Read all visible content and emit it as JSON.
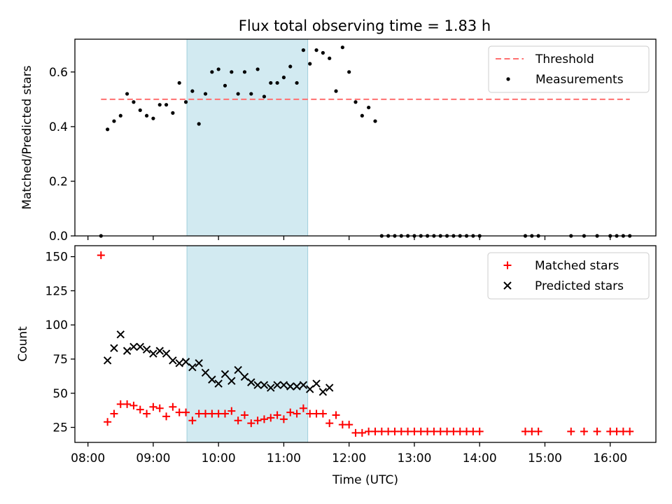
{
  "figure_title": "Flux total observing time = 1.83 h",
  "chart_data": [
    {
      "type": "scatter",
      "title": "Flux total observing time = 1.83 h",
      "xlabel": "",
      "ylabel": "Matched/Predicted stars",
      "xlim": [
        "07:48",
        "16:42"
      ],
      "ylim": [
        0,
        0.72
      ],
      "y_ticks": [
        0.0,
        0.2,
        0.4,
        0.6
      ],
      "x_ticks": [
        "08:00",
        "09:00",
        "10:00",
        "11:00",
        "12:00",
        "13:00",
        "14:00",
        "15:00",
        "16:00"
      ],
      "shaded_region": {
        "start": "09:31",
        "end": "11:22",
        "color": "#add8e6"
      },
      "legend_position": "upper right",
      "legend_entries": [
        "Threshold",
        "Measurements"
      ],
      "threshold": {
        "name": "Threshold",
        "value": 0.5,
        "x_range": [
          "08:12",
          "16:18"
        ],
        "color": "#ff7070",
        "style": "dashed"
      },
      "series": [
        {
          "name": "Measurements",
          "color": "#000000",
          "marker": "dot",
          "x": [
            "08:12",
            "08:18",
            "08:24",
            "08:30",
            "08:36",
            "08:42",
            "08:48",
            "08:54",
            "09:00",
            "09:06",
            "09:12",
            "09:18",
            "09:24",
            "09:30",
            "09:36",
            "09:42",
            "09:48",
            "09:54",
            "10:00",
            "10:06",
            "10:12",
            "10:18",
            "10:24",
            "10:30",
            "10:36",
            "10:42",
            "10:48",
            "10:54",
            "11:00",
            "11:06",
            "11:12",
            "11:18",
            "11:24",
            "11:30",
            "11:36",
            "11:42",
            "11:48",
            "11:54",
            "12:00",
            "12:06",
            "12:12",
            "12:18",
            "12:24",
            "12:30",
            "12:36",
            "12:42",
            "12:48",
            "12:54",
            "13:00",
            "13:06",
            "13:12",
            "13:18",
            "13:24",
            "13:30",
            "13:36",
            "13:42",
            "13:48",
            "13:54",
            "14:00",
            "14:42",
            "14:48",
            "14:54",
            "15:24",
            "15:36",
            "15:48",
            "16:00",
            "16:06",
            "16:12",
            "16:18"
          ],
          "y": [
            0.0,
            0.39,
            0.42,
            0.44,
            0.52,
            0.49,
            0.46,
            0.44,
            0.43,
            0.48,
            0.48,
            0.45,
            0.56,
            0.49,
            0.53,
            0.41,
            0.52,
            0.6,
            0.61,
            0.55,
            0.6,
            0.52,
            0.6,
            0.52,
            0.61,
            0.51,
            0.56,
            0.56,
            0.58,
            0.62,
            0.56,
            0.68,
            0.63,
            0.68,
            0.67,
            0.65,
            0.53,
            0.69,
            0.6,
            0.49,
            0.44,
            0.47,
            0.42,
            0,
            0,
            0,
            0,
            0,
            0,
            0,
            0,
            0,
            0,
            0,
            0,
            0,
            0,
            0,
            0,
            0,
            0,
            0,
            0,
            0,
            0,
            0,
            0,
            0,
            0
          ]
        }
      ]
    },
    {
      "type": "scatter",
      "xlabel": "Time (UTC)",
      "ylabel": "Count",
      "xlim": [
        "07:48",
        "16:42"
      ],
      "ylim": [
        14,
        158
      ],
      "y_ticks": [
        25,
        50,
        75,
        100,
        125,
        150
      ],
      "x_ticks": [
        "08:00",
        "09:00",
        "10:00",
        "11:00",
        "12:00",
        "13:00",
        "14:00",
        "15:00",
        "16:00"
      ],
      "shaded_region": {
        "start": "09:31",
        "end": "11:22",
        "color": "#add8e6"
      },
      "legend_position": "upper right",
      "legend_entries": [
        "Matched stars",
        "Predicted stars"
      ],
      "series": [
        {
          "name": "Matched stars",
          "color": "#ff0000",
          "marker": "plus",
          "x": [
            "08:12",
            "08:18",
            "08:24",
            "08:30",
            "08:36",
            "08:42",
            "08:48",
            "08:54",
            "09:00",
            "09:06",
            "09:12",
            "09:18",
            "09:24",
            "09:30",
            "09:36",
            "09:42",
            "09:48",
            "09:54",
            "10:00",
            "10:06",
            "10:12",
            "10:18",
            "10:24",
            "10:30",
            "10:36",
            "10:42",
            "10:48",
            "10:54",
            "11:00",
            "11:06",
            "11:12",
            "11:18",
            "11:24",
            "11:30",
            "11:36",
            "11:42",
            "11:48",
            "11:54",
            "12:00",
            "12:06",
            "12:12",
            "12:18",
            "12:24",
            "12:30",
            "12:36",
            "12:42",
            "12:48",
            "12:54",
            "13:00",
            "13:06",
            "13:12",
            "13:18",
            "13:24",
            "13:30",
            "13:36",
            "13:42",
            "13:48",
            "13:54",
            "14:00",
            "14:42",
            "14:48",
            "14:54",
            "15:24",
            "15:36",
            "15:48",
            "16:00",
            "16:06",
            "16:12",
            "16:18"
          ],
          "y": [
            151,
            29,
            35,
            42,
            42,
            41,
            38,
            35,
            40,
            39,
            33,
            40,
            36,
            36,
            30,
            35,
            35,
            35,
            35,
            35,
            37,
            30,
            34,
            28,
            30,
            31,
            32,
            34,
            31,
            36,
            35,
            39,
            35,
            35,
            35,
            28,
            34,
            27,
            27,
            21,
            21,
            22,
            22,
            22,
            22,
            22,
            22,
            22,
            22,
            22,
            22,
            22,
            22,
            22,
            22,
            22,
            22,
            22,
            22,
            22,
            22,
            22,
            22,
            22,
            22,
            22,
            22,
            22,
            22
          ]
        },
        {
          "name": "Predicted stars",
          "color": "#000000",
          "marker": "x",
          "x": [
            "08:18",
            "08:24",
            "08:30",
            "08:36",
            "08:42",
            "08:48",
            "08:54",
            "09:00",
            "09:06",
            "09:12",
            "09:18",
            "09:24",
            "09:30",
            "09:36",
            "09:42",
            "09:48",
            "09:54",
            "10:00",
            "10:06",
            "10:12",
            "10:18",
            "10:24",
            "10:30",
            "10:36",
            "10:42",
            "10:48",
            "10:54",
            "11:00",
            "11:06",
            "11:12",
            "11:18",
            "11:24",
            "11:30",
            "11:36",
            "11:42"
          ],
          "y": [
            74,
            83,
            93,
            81,
            84,
            84,
            82,
            79,
            81,
            79,
            74,
            72,
            73,
            69,
            72,
            65,
            60,
            57,
            64,
            59,
            67,
            62,
            58,
            56,
            56,
            54,
            56,
            56,
            55,
            55,
            56,
            53,
            57,
            51,
            54
          ]
        }
      ]
    }
  ]
}
